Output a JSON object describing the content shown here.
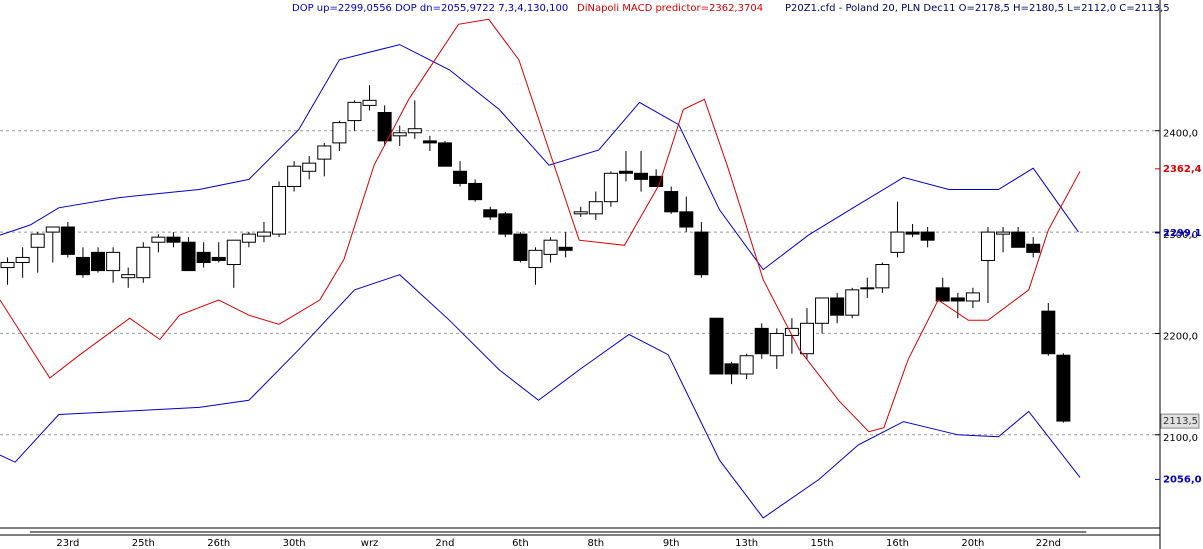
{
  "chart_data": {
    "type": "candlestick",
    "header": {
      "dop": "DOP up=2299,0556 DOP dn=2055,9722  7,3,4,130,100",
      "macd": "DiNapoli MACD predictor=2362,3704",
      "instrument": "P20Z1.cfd - Poland 20, PLN Dec11 O=2178,5 H=2180,5 L=2112,0 C=2113,5"
    },
    "categories": [
      null,
      null,
      null,
      null,
      "23rd",
      null,
      null,
      null,
      null,
      "25th",
      null,
      null,
      null,
      null,
      "26th",
      null,
      null,
      null,
      null,
      "30th",
      null,
      null,
      null,
      null,
      "wrz",
      null,
      null,
      null,
      null,
      "2nd",
      null,
      null,
      null,
      null,
      "6th",
      null,
      null,
      null,
      null,
      "8th",
      null,
      null,
      null,
      null,
      "9th",
      null,
      null,
      null,
      null,
      "13th",
      null,
      null,
      null,
      null,
      "15th",
      null,
      null,
      null,
      null,
      "16th",
      null,
      null,
      null,
      null,
      "20th",
      null,
      null,
      null,
      null,
      "22nd",
      null
    ],
    "open": [
      2265,
      2270,
      2285,
      2300,
      2305,
      2275,
      2280,
      2262,
      2255,
      2255,
      2290,
      2295,
      2290,
      2280,
      2275,
      2268,
      2290,
      2296,
      2298,
      2345,
      2360,
      2372,
      2388,
      2410,
      2425,
      2418,
      2395,
      2398,
      2390,
      2388,
      2360,
      2348,
      2322,
      2318,
      2298,
      2265,
      2278,
      2285,
      2318,
      2318,
      2330,
      2360,
      2358,
      2355,
      2340,
      2320,
      2300,
      2215,
      2170,
      2160,
      2205,
      2178,
      2198,
      2180,
      2210,
      2235,
      2218,
      2245,
      2245,
      2280,
      2300,
      2300,
      2245,
      2235,
      2232,
      2272,
      2298,
      2300,
      2288,
      2222,
      2178.5
    ],
    "high": [
      2275,
      2285,
      2300,
      2305,
      2310,
      2285,
      2285,
      2285,
      2265,
      2290,
      2298,
      2300,
      2295,
      2290,
      2290,
      2292,
      2300,
      2310,
      2350,
      2370,
      2375,
      2388,
      2410,
      2430,
      2445,
      2425,
      2405,
      2430,
      2395,
      2390,
      2370,
      2352,
      2325,
      2320,
      2300,
      2285,
      2295,
      2300,
      2325,
      2340,
      2360,
      2380,
      2380,
      2362,
      2345,
      2335,
      2310,
      2215,
      2172,
      2180,
      2210,
      2205,
      2215,
      2225,
      2235,
      2240,
      2245,
      2255,
      2270,
      2330,
      2308,
      2305,
      2255,
      2240,
      2245,
      2305,
      2305,
      2305,
      2295,
      2230,
      2180.5
    ],
    "low": [
      2248,
      2255,
      2260,
      2270,
      2275,
      2255,
      2260,
      2250,
      2245,
      2250,
      2280,
      2285,
      2262,
      2265,
      2270,
      2245,
      2285,
      2290,
      2295,
      2340,
      2352,
      2355,
      2380,
      2400,
      2420,
      2385,
      2385,
      2392,
      2380,
      2365,
      2345,
      2330,
      2312,
      2295,
      2270,
      2248,
      2270,
      2275,
      2315,
      2312,
      2325,
      2350,
      2340,
      2345,
      2318,
      2300,
      2255,
      2160,
      2150,
      2155,
      2175,
      2165,
      2180,
      2175,
      2200,
      2210,
      2215,
      2235,
      2240,
      2275,
      2295,
      2285,
      2235,
      2215,
      2225,
      2230,
      2280,
      2285,
      2275,
      2178,
      2112
    ],
    "close": [
      2270,
      2275,
      2298,
      2305,
      2278,
      2258,
      2262,
      2280,
      2258,
      2285,
      2295,
      2290,
      2262,
      2270,
      2272,
      2292,
      2298,
      2300,
      2345,
      2365,
      2368,
      2385,
      2408,
      2428,
      2430,
      2390,
      2398,
      2402,
      2388,
      2365,
      2348,
      2332,
      2315,
      2298,
      2272,
      2282,
      2292,
      2282,
      2320,
      2330,
      2358,
      2358,
      2352,
      2345,
      2320,
      2305,
      2258,
      2160,
      2160,
      2178,
      2180,
      2200,
      2205,
      2210,
      2235,
      2218,
      2243,
      2245,
      2268,
      2300,
      2298,
      2292,
      2232,
      2232,
      2240,
      2300,
      2300,
      2285,
      2280,
      2180,
      2113.5
    ],
    "up_color": "#ffffff",
    "down_color": "#000000",
    "series": [
      {
        "name": "DOP up",
        "color": "#0000cc",
        "x": [
          -0.5,
          1.5,
          3.4,
          7.4,
          12.7,
          16.0,
          19.3,
          22.0,
          26.0,
          29.3,
          32.6,
          35.9,
          39.2,
          41.9,
          44.5,
          47.2,
          50.1,
          53.1,
          56.4,
          59.4,
          62.4,
          65.7,
          68.0,
          71.0
        ],
        "values": [
          2297,
          2307,
          2324,
          2334,
          2342,
          2352,
          2401,
          2470,
          2485,
          2460,
          2421,
          2366,
          2381,
          2428,
          2406,
          2322,
          2263,
          2297,
          2327,
          2354,
          2342,
          2342,
          2363,
          2300
        ]
      },
      {
        "name": "DOP dn",
        "color": "#0000cc",
        "x": [
          -0.5,
          0.5,
          3.4,
          7.4,
          12.7,
          16.0,
          19.3,
          23.0,
          26.0,
          29.3,
          32.6,
          35.2,
          37.9,
          41.2,
          43.8,
          47.2,
          50.1,
          53.8,
          56.4,
          59.4,
          63.0,
          65.7,
          67.7,
          71.1
        ],
        "values": [
          2080,
          2073,
          2120,
          2123,
          2127,
          2134,
          2184,
          2243,
          2258,
          2213,
          2164,
          2134,
          2164,
          2199,
          2179,
          2075,
          2018,
          2056,
          2090,
          2113,
          2100,
          2098,
          2123,
          2058
        ]
      },
      {
        "name": "DiNapoli MACD predictor",
        "color": "#dd0000",
        "x": [
          -0.5,
          2.8,
          4.8,
          8.1,
          10.1,
          11.4,
          14.0,
          16.0,
          18.0,
          20.7,
          22.3,
          24.3,
          26.6,
          29.9,
          31.9,
          33.9,
          35.9,
          37.9,
          40.9,
          43.2,
          44.8,
          46.2,
          47.8,
          50.1,
          52.5,
          55.1,
          57.1,
          58.1,
          59.7,
          61.7,
          63.7,
          65.0,
          67.7,
          69.0,
          71.1
        ],
        "values": [
          2233,
          2156,
          2179,
          2215,
          2194,
          2218,
          2233,
          2218,
          2209,
          2233,
          2273,
          2366,
          2431,
          2505,
          2510,
          2470,
          2381,
          2292,
          2287,
          2347,
          2421,
          2431,
          2362,
          2253,
          2184,
          2134,
          2103,
          2107,
          2174,
          2233,
          2213,
          2213,
          2243,
          2302,
          2360
        ]
      }
    ],
    "price_labels": [
      {
        "value": 2362.4,
        "label": "2362,4",
        "color": "#dd0000"
      },
      {
        "value": 2299.1,
        "label": "2299,1",
        "color": "#0000cc"
      },
      {
        "value": 2113.5,
        "label": "2113,5",
        "color": "#333333"
      },
      {
        "value": 2056.0,
        "label": "2056,0",
        "color": "#0000cc"
      }
    ],
    "xlim": [
      -0.5,
      71.3
    ],
    "ylim": [
      2010,
      2529
    ],
    "yticks": [
      {
        "value": 2100,
        "label": "2100,0"
      },
      {
        "value": 2200,
        "label": "2200,0"
      },
      {
        "value": 2300,
        "label": "2300,0"
      },
      {
        "value": 2400,
        "label": "2400,0"
      }
    ],
    "grid": true
  }
}
